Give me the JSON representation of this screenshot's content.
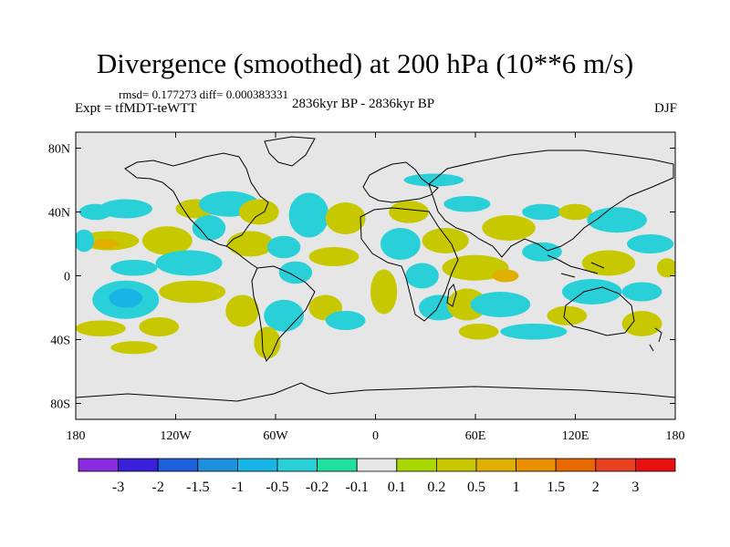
{
  "chart_data": {
    "type": "heatmap",
    "title": "Divergence (smoothed) at 200 hPa (10**6 m/s)",
    "stats": "rmsd= 0.177273 diff= 0.000383331",
    "experiment": "Expt = tfMDT-teWTT",
    "period": "2836kyr BP - 2836kyr BP",
    "season": "DJF",
    "xlim": [
      -180,
      180
    ],
    "ylim": [
      -90,
      90
    ],
    "x_ticks": [
      {
        "value": -180,
        "label": "180"
      },
      {
        "value": -120,
        "label": "120W"
      },
      {
        "value": -60,
        "label": "60W"
      },
      {
        "value": 0,
        "label": "0"
      },
      {
        "value": 60,
        "label": "60E"
      },
      {
        "value": 120,
        "label": "120E"
      },
      {
        "value": 180,
        "label": "180"
      }
    ],
    "y_ticks": [
      {
        "value": 80,
        "label": "80N"
      },
      {
        "value": 40,
        "label": "40N"
      },
      {
        "value": 0,
        "label": "0"
      },
      {
        "value": -40,
        "label": "40S"
      },
      {
        "value": -80,
        "label": "80S"
      }
    ],
    "colorbar": {
      "levels": [
        "-3",
        "-2",
        "-1.5",
        "-1",
        "-0.5",
        "-0.2",
        "-0.1",
        "0.1",
        "0.2",
        "0.5",
        "1",
        "1.5",
        "2",
        "3"
      ],
      "colors": [
        "#8a2be2",
        "#3a20d8",
        "#1f5fdb",
        "#1e90dc",
        "#18b4e6",
        "#29d0d8",
        "#20e0a0",
        "#e6e6e6",
        "#a8d800",
        "#c8c800",
        "#e0b000",
        "#e89000",
        "#e86800",
        "#e84020",
        "#e81010"
      ]
    },
    "background_color": "#e6e6e6",
    "anomaly_regions": [
      {
        "lon": -160,
        "lat": 22,
        "rx": 18,
        "ry": 6,
        "level": "pos_weak"
      },
      {
        "lon": -162,
        "lat": 20,
        "rx": 8,
        "ry": 3,
        "level": "pos_mid"
      },
      {
        "lon": -125,
        "lat": 22,
        "rx": 15,
        "ry": 9,
        "level": "pos_weak"
      },
      {
        "lon": -150,
        "lat": 42,
        "rx": 16,
        "ry": 6,
        "level": "neg_weak"
      },
      {
        "lon": -168,
        "lat": 40,
        "rx": 10,
        "ry": 5,
        "level": "neg_weak"
      },
      {
        "lon": -175,
        "lat": 22,
        "rx": 6,
        "ry": 7,
        "level": "neg_weak"
      },
      {
        "lon": -108,
        "lat": 42,
        "rx": 12,
        "ry": 6,
        "level": "pos_weak"
      },
      {
        "lon": -88,
        "lat": 45,
        "rx": 18,
        "ry": 8,
        "level": "neg_weak"
      },
      {
        "lon": -70,
        "lat": 40,
        "rx": 12,
        "ry": 8,
        "level": "pos_weak"
      },
      {
        "lon": -112,
        "lat": 8,
        "rx": 20,
        "ry": 8,
        "level": "neg_weak"
      },
      {
        "lon": -145,
        "lat": 5,
        "rx": 14,
        "ry": 5,
        "level": "neg_weak"
      },
      {
        "lon": -100,
        "lat": 30,
        "rx": 10,
        "ry": 8,
        "level": "neg_weak"
      },
      {
        "lon": -75,
        "lat": 20,
        "rx": 14,
        "ry": 8,
        "level": "pos_weak"
      },
      {
        "lon": -55,
        "lat": 18,
        "rx": 10,
        "ry": 7,
        "level": "neg_weak"
      },
      {
        "lon": -40,
        "lat": 38,
        "rx": 12,
        "ry": 14,
        "level": "neg_weak"
      },
      {
        "lon": -18,
        "lat": 36,
        "rx": 12,
        "ry": 10,
        "level": "pos_weak"
      },
      {
        "lon": -25,
        "lat": 12,
        "rx": 15,
        "ry": 6,
        "level": "pos_weak"
      },
      {
        "lon": -48,
        "lat": 2,
        "rx": 10,
        "ry": 7,
        "level": "neg_weak"
      },
      {
        "lon": -150,
        "lat": -15,
        "rx": 20,
        "ry": 12,
        "level": "neg_weak"
      },
      {
        "lon": -150,
        "lat": -14,
        "rx": 10,
        "ry": 6,
        "level": "neg_mid"
      },
      {
        "lon": -110,
        "lat": -10,
        "rx": 20,
        "ry": 7,
        "level": "pos_weak"
      },
      {
        "lon": -165,
        "lat": -33,
        "rx": 15,
        "ry": 5,
        "level": "pos_weak"
      },
      {
        "lon": -130,
        "lat": -32,
        "rx": 12,
        "ry": 6,
        "level": "pos_weak"
      },
      {
        "lon": -145,
        "lat": -45,
        "rx": 14,
        "ry": 4,
        "level": "pos_weak"
      },
      {
        "lon": -80,
        "lat": -22,
        "rx": 10,
        "ry": 10,
        "level": "pos_weak"
      },
      {
        "lon": -55,
        "lat": -25,
        "rx": 12,
        "ry": 10,
        "level": "neg_weak"
      },
      {
        "lon": -65,
        "lat": -42,
        "rx": 8,
        "ry": 10,
        "level": "pos_weak"
      },
      {
        "lon": -30,
        "lat": -20,
        "rx": 10,
        "ry": 8,
        "level": "pos_weak"
      },
      {
        "lon": -18,
        "lat": -28,
        "rx": 12,
        "ry": 6,
        "level": "neg_weak"
      },
      {
        "lon": 5,
        "lat": -10,
        "rx": 8,
        "ry": 14,
        "level": "pos_weak"
      },
      {
        "lon": 20,
        "lat": 40,
        "rx": 12,
        "ry": 7,
        "level": "pos_weak"
      },
      {
        "lon": 15,
        "lat": 20,
        "rx": 12,
        "ry": 10,
        "level": "neg_weak"
      },
      {
        "lon": 28,
        "lat": 0,
        "rx": 10,
        "ry": 8,
        "level": "neg_weak"
      },
      {
        "lon": 42,
        "lat": 22,
        "rx": 14,
        "ry": 8,
        "level": "pos_weak"
      },
      {
        "lon": 55,
        "lat": 45,
        "rx": 14,
        "ry": 5,
        "level": "neg_weak"
      },
      {
        "lon": 35,
        "lat": 60,
        "rx": 18,
        "ry": 4,
        "level": "neg_weak"
      },
      {
        "lon": 60,
        "lat": 5,
        "rx": 20,
        "ry": 8,
        "level": "pos_weak"
      },
      {
        "lon": 78,
        "lat": 0,
        "rx": 8,
        "ry": 4,
        "level": "pos_mid"
      },
      {
        "lon": 38,
        "lat": -20,
        "rx": 12,
        "ry": 8,
        "level": "neg_weak"
      },
      {
        "lon": 55,
        "lat": -18,
        "rx": 12,
        "ry": 10,
        "level": "pos_weak"
      },
      {
        "lon": 75,
        "lat": -18,
        "rx": 18,
        "ry": 8,
        "level": "neg_weak"
      },
      {
        "lon": 62,
        "lat": -35,
        "rx": 12,
        "ry": 5,
        "level": "pos_weak"
      },
      {
        "lon": 95,
        "lat": -35,
        "rx": 20,
        "ry": 5,
        "level": "neg_weak"
      },
      {
        "lon": 80,
        "lat": 30,
        "rx": 16,
        "ry": 8,
        "level": "pos_weak"
      },
      {
        "lon": 100,
        "lat": 15,
        "rx": 12,
        "ry": 6,
        "level": "neg_weak"
      },
      {
        "lon": 100,
        "lat": 40,
        "rx": 12,
        "ry": 5,
        "level": "neg_weak"
      },
      {
        "lon": 120,
        "lat": 40,
        "rx": 10,
        "ry": 5,
        "level": "pos_weak"
      },
      {
        "lon": 145,
        "lat": 35,
        "rx": 18,
        "ry": 8,
        "level": "neg_weak"
      },
      {
        "lon": 165,
        "lat": 20,
        "rx": 14,
        "ry": 6,
        "level": "neg_weak"
      },
      {
        "lon": 140,
        "lat": 8,
        "rx": 16,
        "ry": 8,
        "level": "pos_weak"
      },
      {
        "lon": 130,
        "lat": -10,
        "rx": 18,
        "ry": 8,
        "level": "neg_weak"
      },
      {
        "lon": 115,
        "lat": -25,
        "rx": 12,
        "ry": 6,
        "level": "pos_weak"
      },
      {
        "lon": 160,
        "lat": -30,
        "rx": 12,
        "ry": 8,
        "level": "pos_weak"
      },
      {
        "lon": 160,
        "lat": -10,
        "rx": 12,
        "ry": 6,
        "level": "neg_weak"
      },
      {
        "lon": 175,
        "lat": 5,
        "rx": 6,
        "ry": 6,
        "level": "pos_weak"
      }
    ]
  }
}
